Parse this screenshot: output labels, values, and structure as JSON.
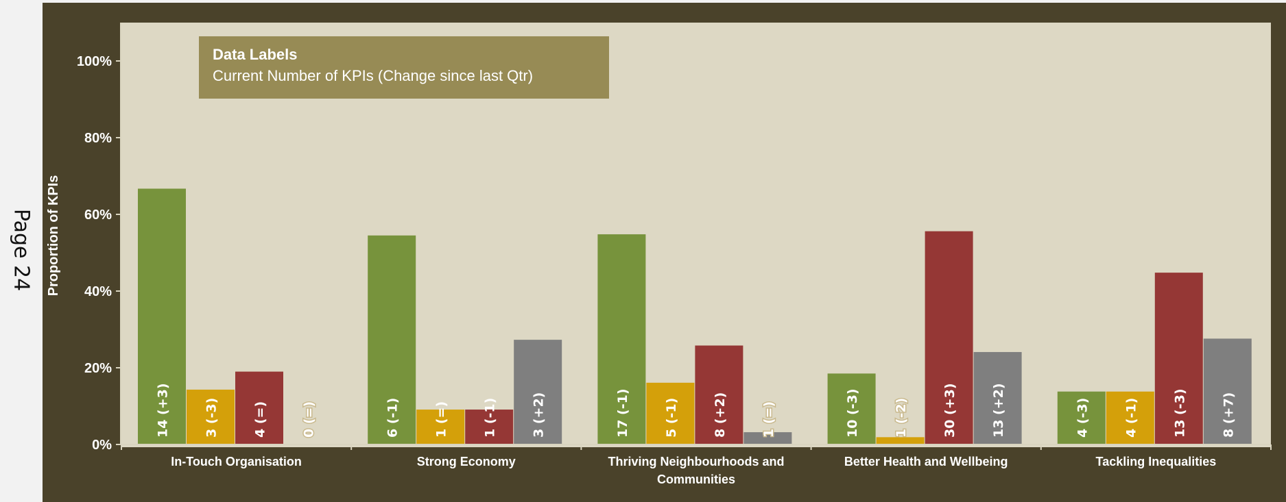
{
  "page_number": "Page 24",
  "chart_data": {
    "type": "bar",
    "title": "Data Labels",
    "subtitle": "Current Number of KPIs (Change since last Qtr)",
    "ylabel": "Proportion of KPIs",
    "xlabel": "",
    "ylim": [
      0,
      110
    ],
    "yticks": [
      0,
      20,
      40,
      60,
      80,
      100
    ],
    "ytick_labels": [
      "0%",
      "20%",
      "40%",
      "60%",
      "80%",
      "100%"
    ],
    "grid": false,
    "categories": [
      "In-Touch Organisation",
      "Strong Economy",
      "Thriving Neighbourhoods and Communities",
      "Better Health and Wellbeing",
      "Tackling Inequalities"
    ],
    "category_lines": [
      [
        "In-Touch Organisation"
      ],
      [
        "Strong Economy"
      ],
      [
        "Thriving Neighbourhoods and",
        "Communities"
      ],
      [
        "Better Health and Wellbeing"
      ],
      [
        "Tackling Inequalities"
      ]
    ],
    "series": [
      {
        "color": "#77933c",
        "values": [
          66.7,
          54.5,
          54.8,
          18.5,
          13.8
        ],
        "labels": [
          "14 (+3)",
          "6 (-1)",
          "17 (-1)",
          "10 (-3)",
          "4 (-3)"
        ]
      },
      {
        "color": "#d4a00a",
        "values": [
          14.3,
          9.1,
          16.1,
          1.9,
          13.8
        ],
        "labels": [
          "3 (-3)",
          "1 (=)",
          "5 (-1)",
          "1 (-2)",
          "4 (-1)"
        ]
      },
      {
        "color": "#953735",
        "values": [
          19.0,
          9.1,
          25.8,
          55.6,
          44.8
        ],
        "labels": [
          "4 (=)",
          "1 (-1)",
          "8 (+2)",
          "30 (+3)",
          "13 (-3)"
        ]
      },
      {
        "color": "#7f7f7f",
        "values": [
          0,
          27.3,
          3.2,
          24.1,
          27.6
        ],
        "labels": [
          "0 (=)",
          "3 (+2)",
          "1 (=)",
          "13 (+2)",
          "8 (+7)"
        ]
      }
    ]
  }
}
